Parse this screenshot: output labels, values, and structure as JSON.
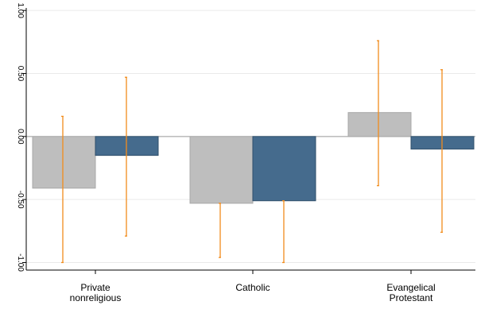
{
  "chart_data": {
    "type": "bar",
    "categories": [
      [
        "Private",
        "nonreligious"
      ],
      [
        "Catholic"
      ],
      [
        "Evangelical",
        "Protestant"
      ]
    ],
    "series": [
      {
        "color": "#bebebe",
        "values": [
          -0.41,
          -0.53,
          0.19
        ],
        "ci_low": [
          -1.0,
          -0.96,
          -0.39
        ],
        "ci_high": [
          0.16,
          -0.53,
          0.76
        ]
      },
      {
        "color": "#456b8d",
        "values": [
          -0.15,
          -0.51,
          -0.1
        ],
        "ci_low": [
          -0.79,
          -1.0,
          -0.76
        ],
        "ci_high": [
          0.47,
          -0.51,
          0.53
        ]
      }
    ],
    "error_bar_color": "#f28c1c",
    "ylim": [
      -1.06,
      1.02
    ],
    "yticks": [
      1.0,
      0.5,
      0.0,
      -0.5,
      -1.0
    ],
    "ytick_labels": [
      "1.00",
      "0.50",
      "0.00",
      "-0.50",
      "-1.00"
    ],
    "grid": true,
    "title": "",
    "xlabel": "",
    "ylabel": ""
  }
}
